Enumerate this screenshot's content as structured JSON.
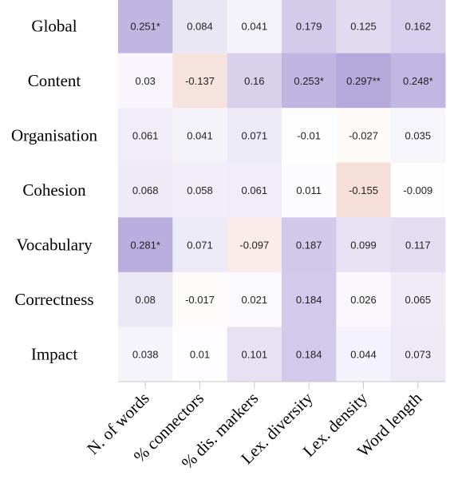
{
  "chart_data": {
    "type": "heatmap",
    "rows": [
      "Global",
      "Content",
      "Organisation",
      "Cohesion",
      "Vocabulary",
      "Correctness",
      "Impact"
    ],
    "columns": [
      "N. of words",
      "% connectors",
      "% dis. markers",
      "Lex. diversity",
      "Lex. density",
      "Word length"
    ],
    "values": [
      [
        0.251,
        0.084,
        0.041,
        0.179,
        0.125,
        0.162
      ],
      [
        0.03,
        -0.137,
        0.16,
        0.253,
        0.297,
        0.248
      ],
      [
        0.061,
        0.041,
        0.071,
        -0.01,
        -0.027,
        0.035
      ],
      [
        0.068,
        0.058,
        0.061,
        0.011,
        -0.155,
        -0.009
      ],
      [
        0.281,
        0.071,
        -0.097,
        0.187,
        0.099,
        0.117
      ],
      [
        0.08,
        -0.017,
        0.021,
        0.184,
        0.026,
        0.065
      ],
      [
        0.038,
        0.01,
        0.101,
        0.184,
        0.044,
        0.073
      ]
    ],
    "labels": [
      [
        "0.251*",
        "0.084",
        "0.041",
        "0.179",
        "0.125",
        "0.162"
      ],
      [
        "0.03",
        "-0.137",
        "0.16",
        "0.253*",
        "0.297**",
        "0.248*"
      ],
      [
        "0.061",
        "0.041",
        "0.071",
        "-0.01",
        "-0.027",
        "0.035"
      ],
      [
        "0.068",
        "0.058",
        "0.061",
        "0.011",
        "-0.155",
        "-0.009"
      ],
      [
        "0.281*",
        "0.071",
        "-0.097",
        "0.187",
        "0.099",
        "0.117"
      ],
      [
        "0.08",
        "-0.017",
        "0.021",
        "0.184",
        "0.026",
        "0.065"
      ],
      [
        "0.038",
        "0.01",
        "0.101",
        "0.184",
        "0.044",
        "0.073"
      ]
    ],
    "value_range": [
      -0.3,
      0.3
    ],
    "colors": {
      "positive": "#b4a8dc",
      "negative": "#ebc2b4",
      "neutral": "#ffffff"
    }
  }
}
